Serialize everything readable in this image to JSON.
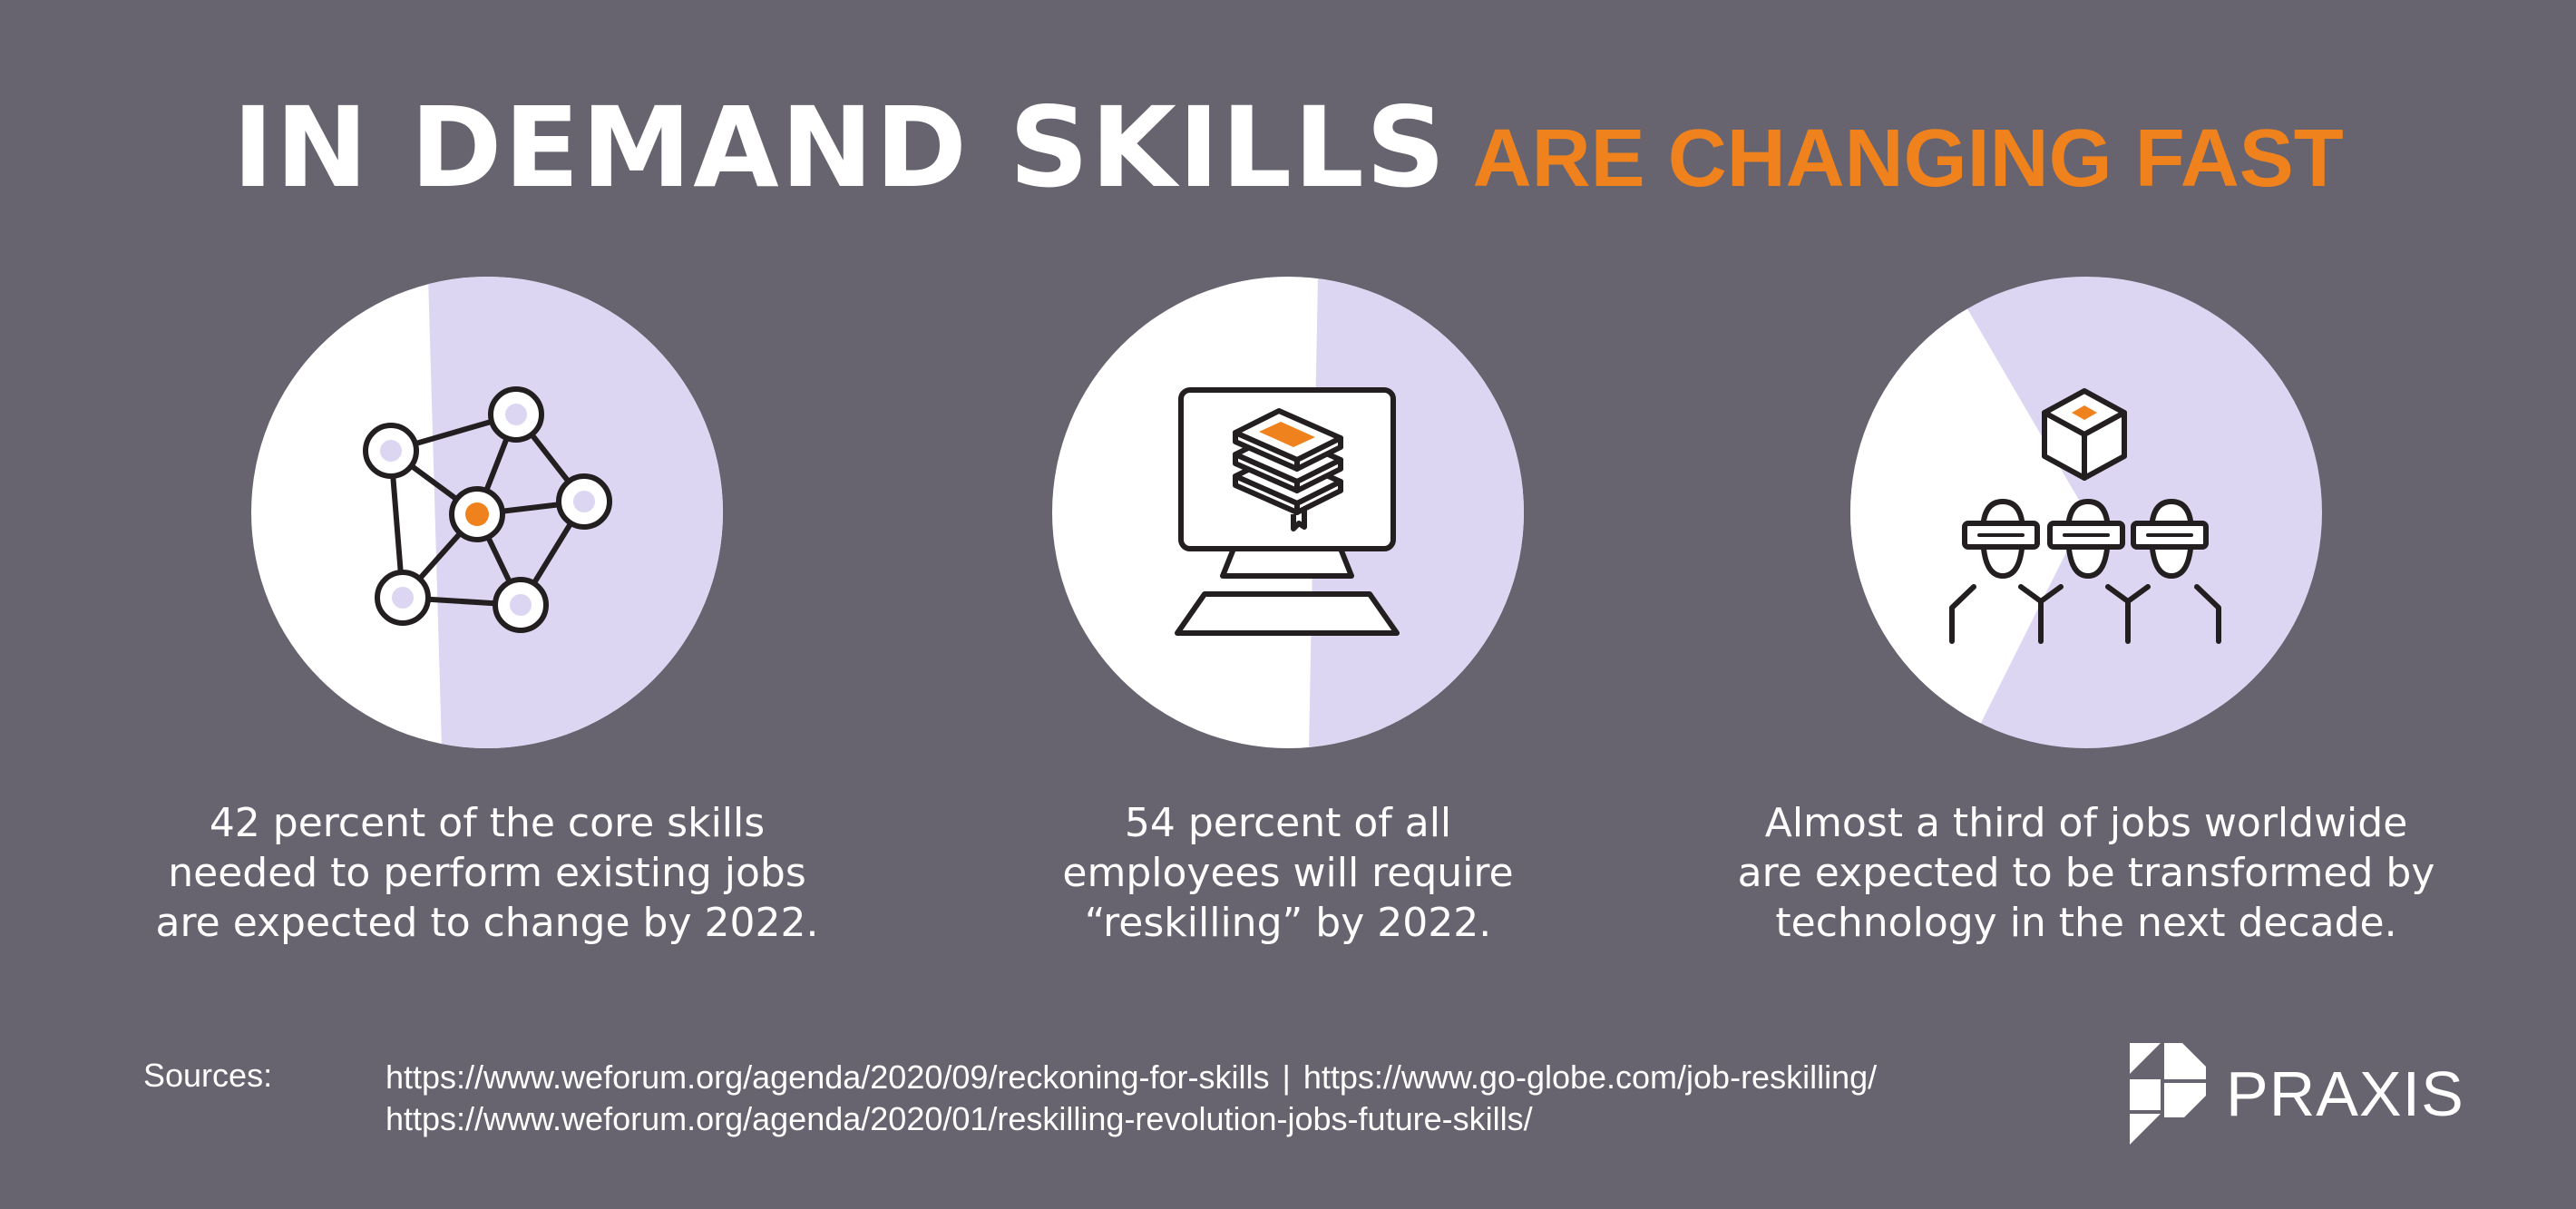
{
  "header": {
    "title_main": "IN DEMAND SKILLS",
    "title_sub": "ARE CHANGING FAST"
  },
  "colors": {
    "background": "#67646f",
    "accent": "#f0821e",
    "lavender": "#ddd6f3",
    "white": "#ffffff",
    "icon_stroke": "#231f20"
  },
  "cards": [
    {
      "icon": "network-nodes-icon",
      "lines": [
        "42 percent of the core skills",
        "needed to perform existing jobs",
        "are expected to change by 2022."
      ]
    },
    {
      "icon": "computer-books-icon",
      "lines": [
        "54 percent of all",
        "employees will require",
        "“reskilling” by 2022."
      ]
    },
    {
      "icon": "vr-people-cube-icon",
      "lines": [
        "Almost a third of jobs worldwide",
        "are expected to be transformed by",
        "technology in the next decade."
      ]
    }
  ],
  "footer": {
    "sources_label": "Sources:",
    "source_1": "https://www.weforum.org/agenda/2020/09/reckoning-for-skills",
    "separator": "|",
    "source_2": "https://www.go-globe.com/job-reskilling/",
    "source_3": "https://www.weforum.org/agenda/2020/01/reskilling-revolution-jobs-future-skills/",
    "logo_text": "PRAXIS"
  }
}
